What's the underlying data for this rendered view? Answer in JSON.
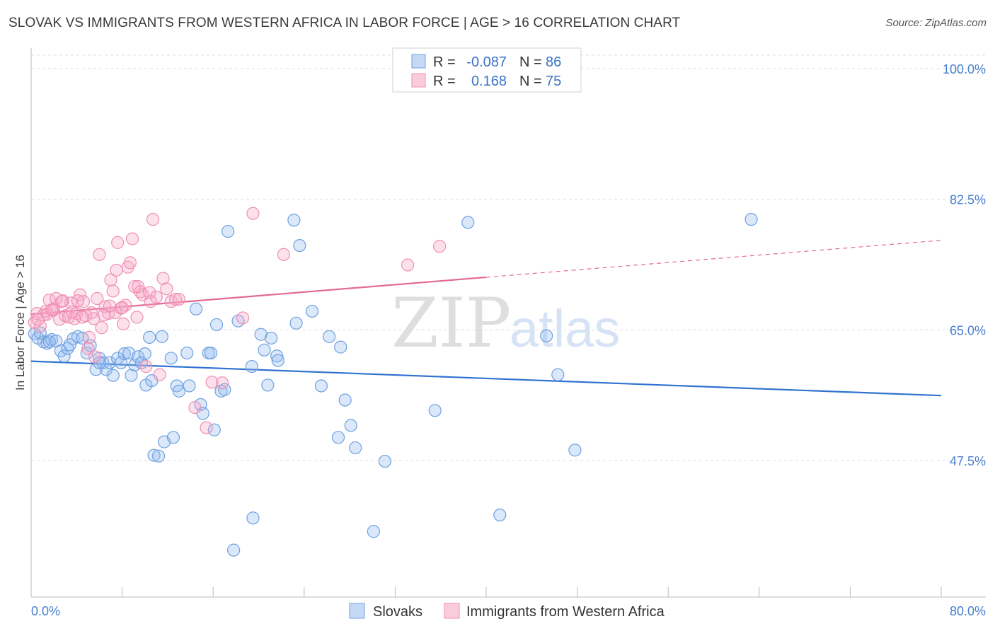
{
  "title": "SLOVAK VS IMMIGRANTS FROM WESTERN AFRICA IN LABOR FORCE | AGE > 16 CORRELATION CHART",
  "source": "Source: ZipAtlas.com",
  "watermark": {
    "zip": "ZIP",
    "atlas": "atlas"
  },
  "legend_top": [
    {
      "r_label": "R =",
      "r_value": "-0.087",
      "n_label": "N =",
      "n_value": "86",
      "color": "#6fa0e0"
    },
    {
      "r_label": "R =",
      "r_value": "0.168",
      "n_label": "N =",
      "n_value": "75",
      "color": "#ef8fb0"
    }
  ],
  "chart_data": {
    "type": "scatter",
    "title": "SLOVAK VS IMMIGRANTS FROM WESTERN AFRICA IN LABOR FORCE | AGE > 16 CORRELATION CHART",
    "xlabel": "",
    "ylabel": "In Labor Force | Age > 16",
    "xlim": [
      0,
      80
    ],
    "ylim": [
      34,
      104
    ],
    "x_tick_labels": [
      "0.0%",
      "80.0%"
    ],
    "y_ticks": [
      100,
      82.5,
      65,
      47.5
    ],
    "y_tick_labels": [
      "100.0%",
      "82.5%",
      "65.0%",
      "47.5%"
    ],
    "grid": true,
    "legend_position": "bottom",
    "series": [
      {
        "name": "Slovaks",
        "color": "#6fa0e0",
        "trend": {
          "x": [
            0,
            80
          ],
          "y": [
            60.8,
            56.2
          ],
          "dashed_from": null
        },
        "points": [
          [
            0.3,
            64.5
          ],
          [
            0.6,
            63.9
          ],
          [
            1.1,
            63.4
          ],
          [
            1.4,
            63.2
          ],
          [
            1.8,
            63.7
          ],
          [
            2.2,
            63.5
          ],
          [
            2.6,
            62.2
          ],
          [
            2.9,
            61.5
          ],
          [
            3.2,
            62.5
          ],
          [
            3.7,
            63.8
          ],
          [
            4.1,
            64.1
          ],
          [
            4.5,
            63.9
          ],
          [
            4.9,
            61.9
          ],
          [
            5.2,
            62.9
          ],
          [
            5.7,
            59.7
          ],
          [
            6.0,
            61.2
          ],
          [
            6.3,
            60.6
          ],
          [
            6.6,
            59.7
          ],
          [
            6.9,
            60.6
          ],
          [
            7.2,
            58.9
          ],
          [
            7.6,
            61.2
          ],
          [
            7.9,
            60.6
          ],
          [
            8.2,
            61.8
          ],
          [
            8.6,
            61.9
          ],
          [
            8.8,
            58.9
          ],
          [
            9.1,
            60.3
          ],
          [
            9.4,
            61.4
          ],
          [
            9.7,
            60.6
          ],
          [
            10.0,
            61.8
          ],
          [
            10.1,
            57.6
          ],
          [
            10.4,
            64.0
          ],
          [
            10.6,
            58.2
          ],
          [
            10.8,
            48.2
          ],
          [
            11.2,
            48.1
          ],
          [
            11.5,
            64.1
          ],
          [
            11.7,
            50.0
          ],
          [
            12.3,
            61.2
          ],
          [
            12.5,
            50.6
          ],
          [
            12.8,
            57.5
          ],
          [
            13.0,
            56.8
          ],
          [
            13.7,
            61.9
          ],
          [
            13.9,
            57.5
          ],
          [
            14.5,
            67.8
          ],
          [
            14.9,
            55.0
          ],
          [
            15.1,
            53.8
          ],
          [
            15.6,
            61.9
          ],
          [
            15.8,
            61.9
          ],
          [
            16.1,
            51.6
          ],
          [
            16.3,
            65.7
          ],
          [
            16.7,
            56.8
          ],
          [
            17.0,
            57.0
          ],
          [
            17.3,
            78.2
          ],
          [
            17.8,
            35.5
          ],
          [
            18.2,
            66.2
          ],
          [
            19.5,
            39.8
          ],
          [
            19.4,
            60.1
          ],
          [
            20.2,
            64.4
          ],
          [
            20.5,
            62.3
          ],
          [
            20.8,
            57.6
          ],
          [
            21.1,
            63.9
          ],
          [
            21.6,
            61.5
          ],
          [
            21.7,
            60.9
          ],
          [
            23.1,
            79.7
          ],
          [
            23.3,
            65.9
          ],
          [
            23.6,
            76.3
          ],
          [
            24.7,
            67.5
          ],
          [
            25.5,
            57.5
          ],
          [
            26.2,
            64.1
          ],
          [
            27.2,
            62.7
          ],
          [
            27.6,
            55.6
          ],
          [
            28.1,
            52.2
          ],
          [
            27.0,
            50.6
          ],
          [
            28.5,
            49.2
          ],
          [
            31.1,
            47.4
          ],
          [
            35.5,
            54.2
          ],
          [
            38.4,
            79.4
          ],
          [
            41.2,
            40.2
          ],
          [
            30.1,
            38.0
          ],
          [
            45.3,
            64.2
          ],
          [
            46.3,
            59.0
          ],
          [
            47.8,
            48.9
          ],
          [
            63.3,
            79.8
          ],
          [
            0.8,
            64.6
          ],
          [
            1.6,
            63.4
          ],
          [
            3.4,
            63.0
          ],
          [
            6.0,
            60.6
          ]
        ]
      },
      {
        "name": "Immigrants from Western Africa",
        "color": "#ef8fb0",
        "trend": {
          "x": [
            0,
            80
          ],
          "y": [
            67.1,
            77.0
          ],
          "dashed_from": 40
        },
        "points": [
          [
            0.3,
            66.0
          ],
          [
            0.5,
            67.2
          ],
          [
            0.8,
            65.5
          ],
          [
            1.1,
            67.0
          ],
          [
            1.3,
            67.5
          ],
          [
            1.6,
            69.0
          ],
          [
            1.9,
            67.6
          ],
          [
            2.2,
            69.2
          ],
          [
            2.5,
            66.4
          ],
          [
            2.8,
            68.9
          ],
          [
            3.0,
            66.9
          ],
          [
            3.3,
            66.7
          ],
          [
            3.5,
            68.6
          ],
          [
            3.8,
            66.5
          ],
          [
            4.0,
            67.2
          ],
          [
            4.3,
            69.7
          ],
          [
            4.6,
            68.8
          ],
          [
            4.8,
            66.9
          ],
          [
            5.1,
            64.0
          ],
          [
            5.3,
            67.3
          ],
          [
            5.5,
            66.5
          ],
          [
            5.8,
            69.2
          ],
          [
            6.0,
            75.1
          ],
          [
            6.2,
            65.3
          ],
          [
            6.5,
            68.1
          ],
          [
            6.8,
            67.2
          ],
          [
            7.0,
            71.7
          ],
          [
            7.2,
            70.2
          ],
          [
            7.4,
            67.3
          ],
          [
            7.6,
            76.7
          ],
          [
            7.9,
            67.9
          ],
          [
            8.1,
            65.8
          ],
          [
            8.3,
            68.3
          ],
          [
            8.5,
            73.4
          ],
          [
            8.7,
            74.0
          ],
          [
            8.9,
            77.2
          ],
          [
            9.1,
            70.8
          ],
          [
            9.3,
            66.7
          ],
          [
            9.6,
            70.1
          ],
          [
            9.8,
            69.7
          ],
          [
            10.1,
            60.1
          ],
          [
            10.4,
            70.0
          ],
          [
            10.7,
            79.8
          ],
          [
            11.0,
            69.4
          ],
          [
            11.3,
            59.0
          ],
          [
            11.6,
            71.9
          ],
          [
            11.9,
            70.5
          ],
          [
            12.3,
            68.8
          ],
          [
            12.7,
            69.1
          ],
          [
            13.0,
            69.1
          ],
          [
            14.4,
            54.6
          ],
          [
            15.4,
            51.9
          ],
          [
            15.9,
            58.0
          ],
          [
            16.8,
            57.9
          ],
          [
            18.6,
            66.6
          ],
          [
            19.5,
            80.6
          ],
          [
            22.2,
            75.1
          ],
          [
            33.1,
            73.7
          ],
          [
            35.9,
            76.2
          ],
          [
            1.4,
            67.1
          ],
          [
            2.0,
            67.8
          ],
          [
            2.7,
            68.8
          ],
          [
            3.6,
            67.4
          ],
          [
            4.5,
            66.7
          ],
          [
            5.0,
            62.5
          ],
          [
            5.6,
            61.4
          ],
          [
            6.4,
            67.0
          ],
          [
            7.5,
            73.0
          ],
          [
            8.0,
            68.0
          ],
          [
            9.4,
            70.8
          ],
          [
            10.5,
            68.8
          ],
          [
            0.6,
            66.4
          ],
          [
            1.8,
            67.7
          ],
          [
            4.1,
            68.9
          ],
          [
            6.9,
            68.2
          ]
        ]
      }
    ]
  },
  "legend_bottom": [
    {
      "label": "Slovaks",
      "color": "#6fa0e0"
    },
    {
      "label": "Immigrants from Western Africa",
      "color": "#ef8fb0"
    }
  ]
}
